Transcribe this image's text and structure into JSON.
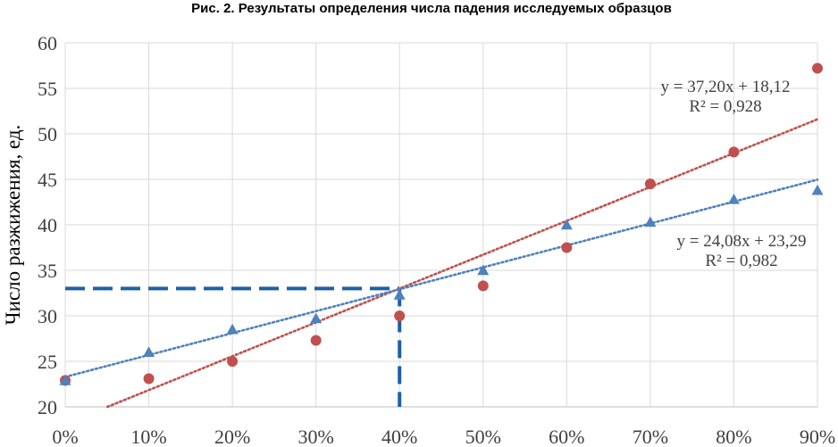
{
  "chart_data": {
    "type": "scatter",
    "title": "Рис. 2. Результаты определения числа падения исследуемых образцов",
    "xlabel": "",
    "ylabel": "Число разжижения, ед.",
    "xlim": [
      0,
      0.9
    ],
    "ylim": [
      20,
      60
    ],
    "x_ticks": [
      0,
      0.1,
      0.2,
      0.3,
      0.4,
      0.5,
      0.6,
      0.7,
      0.8,
      0.9
    ],
    "x_tick_labels": [
      "0%",
      "10%",
      "20%",
      "30%",
      "40%",
      "50%",
      "60%",
      "70%",
      "80%",
      "90%"
    ],
    "y_ticks": [
      20,
      25,
      30,
      35,
      40,
      45,
      50,
      55,
      60
    ],
    "y_tick_labels": [
      "20",
      "25",
      "30",
      "35",
      "40",
      "45",
      "50",
      "55",
      "60"
    ],
    "grid": true,
    "series": [
      {
        "marker": "circle",
        "color": "#c0504d",
        "x": [
          0,
          0.1,
          0.2,
          0.3,
          0.4,
          0.5,
          0.6,
          0.7,
          0.8,
          0.9
        ],
        "y": [
          22.9,
          23.1,
          25.0,
          27.3,
          30.0,
          33.3,
          37.5,
          44.5,
          48.0,
          57.2
        ],
        "trendline": {
          "slope": 37.2,
          "intercept": 18.12,
          "color": "#c0504d",
          "equation": "y = 37,20x + 18,12",
          "r2": "R² = 0,928"
        }
      },
      {
        "marker": "triangle",
        "color": "#4f81bd",
        "x": [
          0,
          0.1,
          0.2,
          0.3,
          0.4,
          0.5,
          0.6,
          0.7,
          0.8,
          0.9
        ],
        "y": [
          22.9,
          26.0,
          28.5,
          29.7,
          32.3,
          35.0,
          40.0,
          40.3,
          42.8,
          43.8
        ],
        "trendline": {
          "slope": 24.08,
          "intercept": 23.29,
          "color": "#4f81bd",
          "equation": "y = 24,08x + 23,29",
          "r2": "R² = 0,982"
        }
      }
    ],
    "reference_lines": {
      "color": "#1f5fa8",
      "x": 0.4,
      "y": 33
    }
  }
}
